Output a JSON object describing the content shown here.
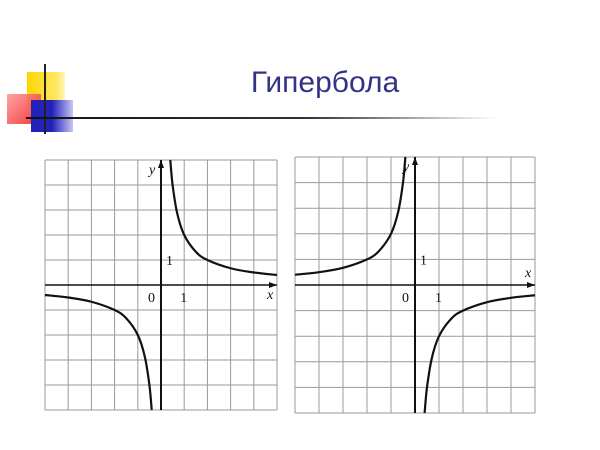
{
  "slide": {
    "title": "Гипербола",
    "accent_colors": {
      "yellow": "#ffd700",
      "red": "#ee2222",
      "blue": "#2b2bc0",
      "title": "#333385"
    }
  },
  "chart_data": [
    {
      "type": "line",
      "xlabel": "x",
      "ylabel": "y",
      "xlim": [
        -5,
        5
      ],
      "ylim": [
        -5,
        5
      ],
      "grid": true,
      "tick_labels": {
        "origin": "0",
        "x_unit": "1",
        "y_unit": "1"
      },
      "series": [
        {
          "x": [
            -5,
            -4,
            -3,
            -2,
            -1.5,
            -1,
            -0.7,
            -0.5,
            -0.4
          ],
          "y": [
            -0.4,
            -0.5,
            -0.67,
            -1,
            -1.33,
            -2,
            -2.86,
            -4,
            -5
          ]
        },
        {
          "x": [
            0.4,
            0.5,
            0.7,
            1,
            1.5,
            2,
            3,
            4,
            5
          ],
          "y": [
            5,
            4,
            2.86,
            2,
            1.33,
            1,
            0.67,
            0.5,
            0.4
          ]
        }
      ]
    },
    {
      "type": "line",
      "xlabel": "x",
      "ylabel": "y",
      "xlim": [
        -5,
        5
      ],
      "ylim": [
        -5,
        5
      ],
      "grid": true,
      "tick_labels": {
        "origin": "0",
        "x_unit": "1",
        "y_unit": "1"
      },
      "series": [
        {
          "x": [
            -5,
            -4,
            -3,
            -2,
            -1.5,
            -1,
            -0.7,
            -0.5,
            -0.4
          ],
          "y": [
            0.4,
            0.5,
            0.67,
            1,
            1.33,
            2,
            2.86,
            4,
            5
          ]
        },
        {
          "x": [
            0.4,
            0.5,
            0.7,
            1,
            1.5,
            2,
            3,
            4,
            5
          ],
          "y": [
            -5,
            -4,
            -2.86,
            -2,
            -1.33,
            -1,
            -0.67,
            -0.5,
            -0.4
          ]
        }
      ]
    }
  ]
}
